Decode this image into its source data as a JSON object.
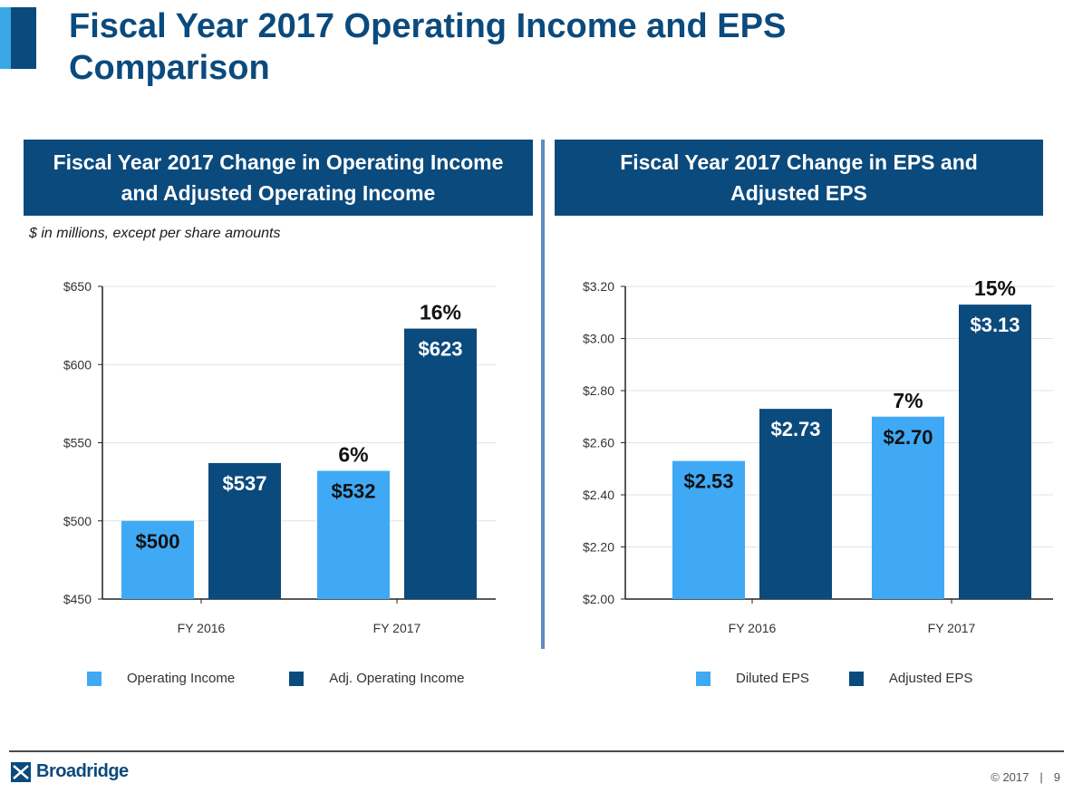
{
  "page": {
    "title_line1": "Fiscal Year 2017 Operating Income and EPS",
    "title_line2": "Comparison",
    "subnote": "$ in millions, except per share amounts",
    "footer_copyright": "© 2017",
    "footer_page": "9",
    "logo_text": "Broadridge"
  },
  "colors": {
    "light": "#3fa9f5",
    "dark": "#0b4a7d"
  },
  "chart_data": [
    {
      "type": "bar",
      "title": "Fiscal Year 2017 Change in Operating Income and Adjusted Operating Income",
      "title_line1": "Fiscal Year 2017 Change in Operating Income",
      "title_line2": "and Adjusted Operating Income",
      "categories": [
        "FY 2016",
        "FY 2017"
      ],
      "series": [
        {
          "name": "Operating Income",
          "values": [
            500,
            532
          ],
          "labels": [
            "$500",
            "$532"
          ]
        },
        {
          "name": "Adj. Operating Income",
          "values": [
            537,
            623
          ],
          "labels": [
            "$537",
            "$623"
          ]
        }
      ],
      "annotations": [
        {
          "category": "FY 2017",
          "series": "Operating Income",
          "text": "6%"
        },
        {
          "category": "FY 2017",
          "series": "Adj. Operating Income",
          "text": "16%"
        }
      ],
      "ylim": [
        450,
        650
      ],
      "yticks": [
        450,
        500,
        550,
        600,
        650
      ],
      "ytick_labels": [
        "$450",
        "$500",
        "$550",
        "$600",
        "$650"
      ],
      "grid": true,
      "legend": "bottom"
    },
    {
      "type": "bar",
      "title": "Fiscal Year 2017 Change in EPS and Adjusted EPS",
      "title_line1": "Fiscal Year 2017 Change in EPS and",
      "title_line2": "Adjusted EPS",
      "categories": [
        "FY 2016",
        "FY 2017"
      ],
      "series": [
        {
          "name": "Diluted EPS",
          "values": [
            2.53,
            2.7
          ],
          "labels": [
            "$2.53",
            "$2.70"
          ]
        },
        {
          "name": "Adjusted EPS",
          "values": [
            2.73,
            3.13
          ],
          "labels": [
            "$2.73",
            "$3.13"
          ]
        }
      ],
      "annotations": [
        {
          "category": "FY 2017",
          "series": "Diluted EPS",
          "text": "7%"
        },
        {
          "category": "FY 2017",
          "series": "Adjusted EPS",
          "text": "15%"
        }
      ],
      "ylim": [
        2.0,
        3.2
      ],
      "yticks": [
        2.0,
        2.2,
        2.4,
        2.6,
        2.8,
        3.0,
        3.2
      ],
      "ytick_labels": [
        "$2.00",
        "$2.20",
        "$2.40",
        "$2.60",
        "$2.80",
        "$3.00",
        "$3.20"
      ],
      "grid": true,
      "legend": "bottom"
    }
  ]
}
